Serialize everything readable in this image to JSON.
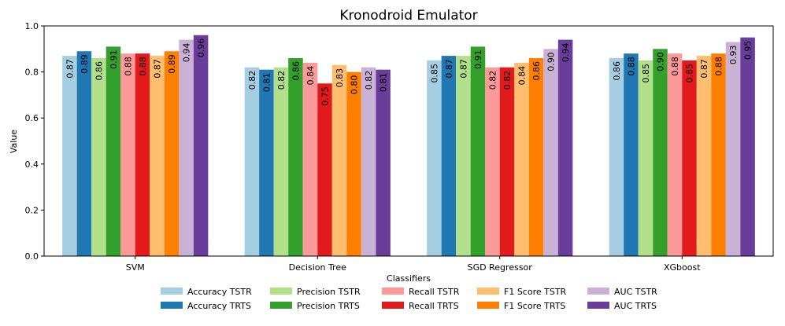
{
  "chart_data": {
    "type": "bar",
    "title": "Kronodroid Emulator",
    "xlabel": "Classifiers",
    "ylabel": "Value",
    "ylim": [
      0,
      1.0
    ],
    "yticks": [
      "0.0",
      "0.2",
      "0.4",
      "0.6",
      "0.8",
      "1.0"
    ],
    "categories": [
      "SVM",
      "Decision Tree",
      "SGD Regressor",
      "XGboost"
    ],
    "series": [
      {
        "name": "Accuracy TSTR",
        "color": "#a6cee3",
        "values": [
          0.87,
          0.82,
          0.85,
          0.86
        ],
        "labels": [
          "0.87",
          "0.82",
          "0.85",
          "0.86"
        ]
      },
      {
        "name": "Accuracy TRTS",
        "color": "#1f78b4",
        "values": [
          0.89,
          0.81,
          0.87,
          0.88
        ],
        "labels": [
          "0.89",
          "0.81",
          "0.87",
          "0.88"
        ]
      },
      {
        "name": "Precision TSTR",
        "color": "#b2df8a",
        "values": [
          0.86,
          0.82,
          0.87,
          0.85
        ],
        "labels": [
          "0.86",
          "0.82",
          "0.87",
          "0.85"
        ]
      },
      {
        "name": "Precision TRTS",
        "color": "#33a02c",
        "values": [
          0.91,
          0.86,
          0.91,
          0.9
        ],
        "labels": [
          "0.91",
          "0.86",
          "0.91",
          "0.90"
        ]
      },
      {
        "name": "Recall TSTR",
        "color": "#fb9a99",
        "values": [
          0.88,
          0.84,
          0.82,
          0.88
        ],
        "labels": [
          "0.88",
          "0.84",
          "0.82",
          "0.88"
        ]
      },
      {
        "name": "Recall TRTS",
        "color": "#e31a1c",
        "values": [
          0.88,
          0.75,
          0.82,
          0.85
        ],
        "labels": [
          "0.88",
          "0.75",
          "0.82",
          "0.85"
        ]
      },
      {
        "name": "F1 Score TSTR",
        "color": "#fdbf6f",
        "values": [
          0.87,
          0.83,
          0.84,
          0.87
        ],
        "labels": [
          "0.87",
          "0.83",
          "0.84",
          "0.87"
        ]
      },
      {
        "name": "F1 Score TRTS",
        "color": "#ff7f00",
        "values": [
          0.89,
          0.8,
          0.86,
          0.88
        ],
        "labels": [
          "0.89",
          "0.80",
          "0.86",
          "0.88"
        ]
      },
      {
        "name": "AUC TSTR",
        "color": "#cab2d6",
        "values": [
          0.94,
          0.82,
          0.9,
          0.93
        ],
        "labels": [
          "0.94",
          "0.82",
          "0.90",
          "0.93"
        ]
      },
      {
        "name": "AUC TRTS",
        "color": "#6a3d9a",
        "values": [
          0.96,
          0.81,
          0.94,
          0.95
        ],
        "labels": [
          "0.96",
          "0.81",
          "0.94",
          "0.95"
        ]
      }
    ],
    "legend": "bottom-center"
  }
}
